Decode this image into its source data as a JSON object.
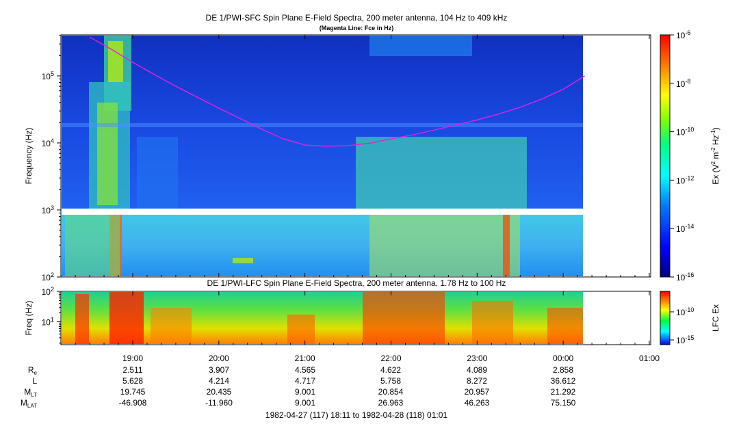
{
  "colors": {
    "fce_line": "#e020e0",
    "background": "#ffffff",
    "colorscale": [
      "#000080",
      "#0000ff",
      "#0080ff",
      "#00ffff",
      "#00ff80",
      "#80ff00",
      "#ffff00",
      "#ff8000",
      "#ff0000"
    ]
  },
  "chart_data": [
    {
      "type": "heatmap",
      "title": "DE 1/PWI-SFC  Spin Plane E-Field Spectra, 200 meter antenna, 104 Hz to 409 kHz",
      "subtitle": "(Magenta Line: Fce in Hz)",
      "ylabel": "Frequency (Hz)",
      "yscale": "log",
      "ylim": [
        100,
        409000
      ],
      "yticks": [
        {
          "value": 100,
          "label": "10",
          "exp": "2"
        },
        {
          "value": 1000,
          "label": "10",
          "exp": "3"
        },
        {
          "value": 10000,
          "label": "10",
          "exp": "4"
        },
        {
          "value": 100000,
          "label": "10",
          "exp": "5"
        }
      ],
      "colorbar": {
        "label": "Ex (V",
        "label_sup1": "2",
        "label_mid": " m",
        "label_sup2": "-2",
        "label_mid2": " Hz",
        "label_sup3": "-1",
        "label_end": ")",
        "scale": "log",
        "range": [
          1e-16,
          1e-06
        ],
        "ticks": [
          {
            "value": 1e-06,
            "label": "10",
            "exp": "-6"
          },
          {
            "value": 1e-08,
            "label": "10",
            "exp": "-8"
          },
          {
            "value": 1e-10,
            "label": "10",
            "exp": "-10"
          },
          {
            "value": 1e-12,
            "label": "10",
            "exp": "-12"
          },
          {
            "value": 1e-14,
            "label": "10",
            "exp": "-14"
          },
          {
            "value": 1e-16,
            "label": "10",
            "exp": "-16"
          }
        ]
      },
      "series": [
        {
          "name": "Fce in Hz",
          "x": [
            "18:30",
            "18:45",
            "19:00",
            "19:15",
            "19:30",
            "19:45",
            "20:00",
            "20:15",
            "20:30",
            "20:45",
            "21:00",
            "21:15",
            "21:30",
            "21:45",
            "22:00",
            "22:15",
            "22:30",
            "22:45",
            "23:00",
            "23:15",
            "23:30",
            "23:45",
            "00:00",
            "00:15"
          ],
          "y": [
            380000,
            250000,
            160000,
            105000,
            70000,
            48000,
            33000,
            23000,
            16000,
            11500,
            9300,
            8900,
            9100,
            9900,
            11500,
            13200,
            15500,
            18500,
            22000,
            27000,
            34000,
            45000,
            63000,
            100000
          ]
        }
      ]
    },
    {
      "type": "heatmap",
      "title": "DE 1/PWI-LFC  Spin Plane E-Field Spectra, 200 meter antenna, 1.78 Hz to 100 Hz",
      "ylabel": "Freq (Hz)",
      "yscale": "log",
      "ylim": [
        1.78,
        100
      ],
      "yticks": [
        {
          "value": 100,
          "label": "10",
          "exp": "2"
        },
        {
          "value": 10,
          "label": "10",
          "exp": "1"
        }
      ],
      "colorbar": {
        "label": "LFC Ex",
        "scale": "log",
        "ticks": [
          {
            "value": 1e-10,
            "label": "10",
            "exp": "-10"
          },
          {
            "value": 1e-15,
            "label": "10",
            "exp": "-15"
          }
        ]
      }
    }
  ],
  "xaxis": {
    "ticks": [
      "19:00",
      "20:00",
      "21:00",
      "22:00",
      "23:00",
      "00:00",
      "01:00"
    ],
    "range_label": "1982-04-27 (117) 18:11 to 1982-04-28 (118) 01:01"
  },
  "ephemeris": {
    "rows": [
      {
        "label": "R",
        "sub": "e",
        "values": [
          "2.511",
          "3.907",
          "4.565",
          "4.622",
          "4.089",
          "2.858"
        ]
      },
      {
        "label": "L",
        "sub": "",
        "values": [
          "5.628",
          "4.214",
          "4.717",
          "5.758",
          "8.272",
          "36.612"
        ]
      },
      {
        "label": "M",
        "sub": "LT",
        "values": [
          "19.745",
          "20.435",
          "9.001",
          "20.854",
          "20.957",
          "21.292"
        ]
      },
      {
        "label": "M",
        "sub": "LAT",
        "values": [
          "-46.908",
          "-11.960",
          "9.001",
          "26.963",
          "46.263",
          "75.150"
        ]
      }
    ]
  }
}
